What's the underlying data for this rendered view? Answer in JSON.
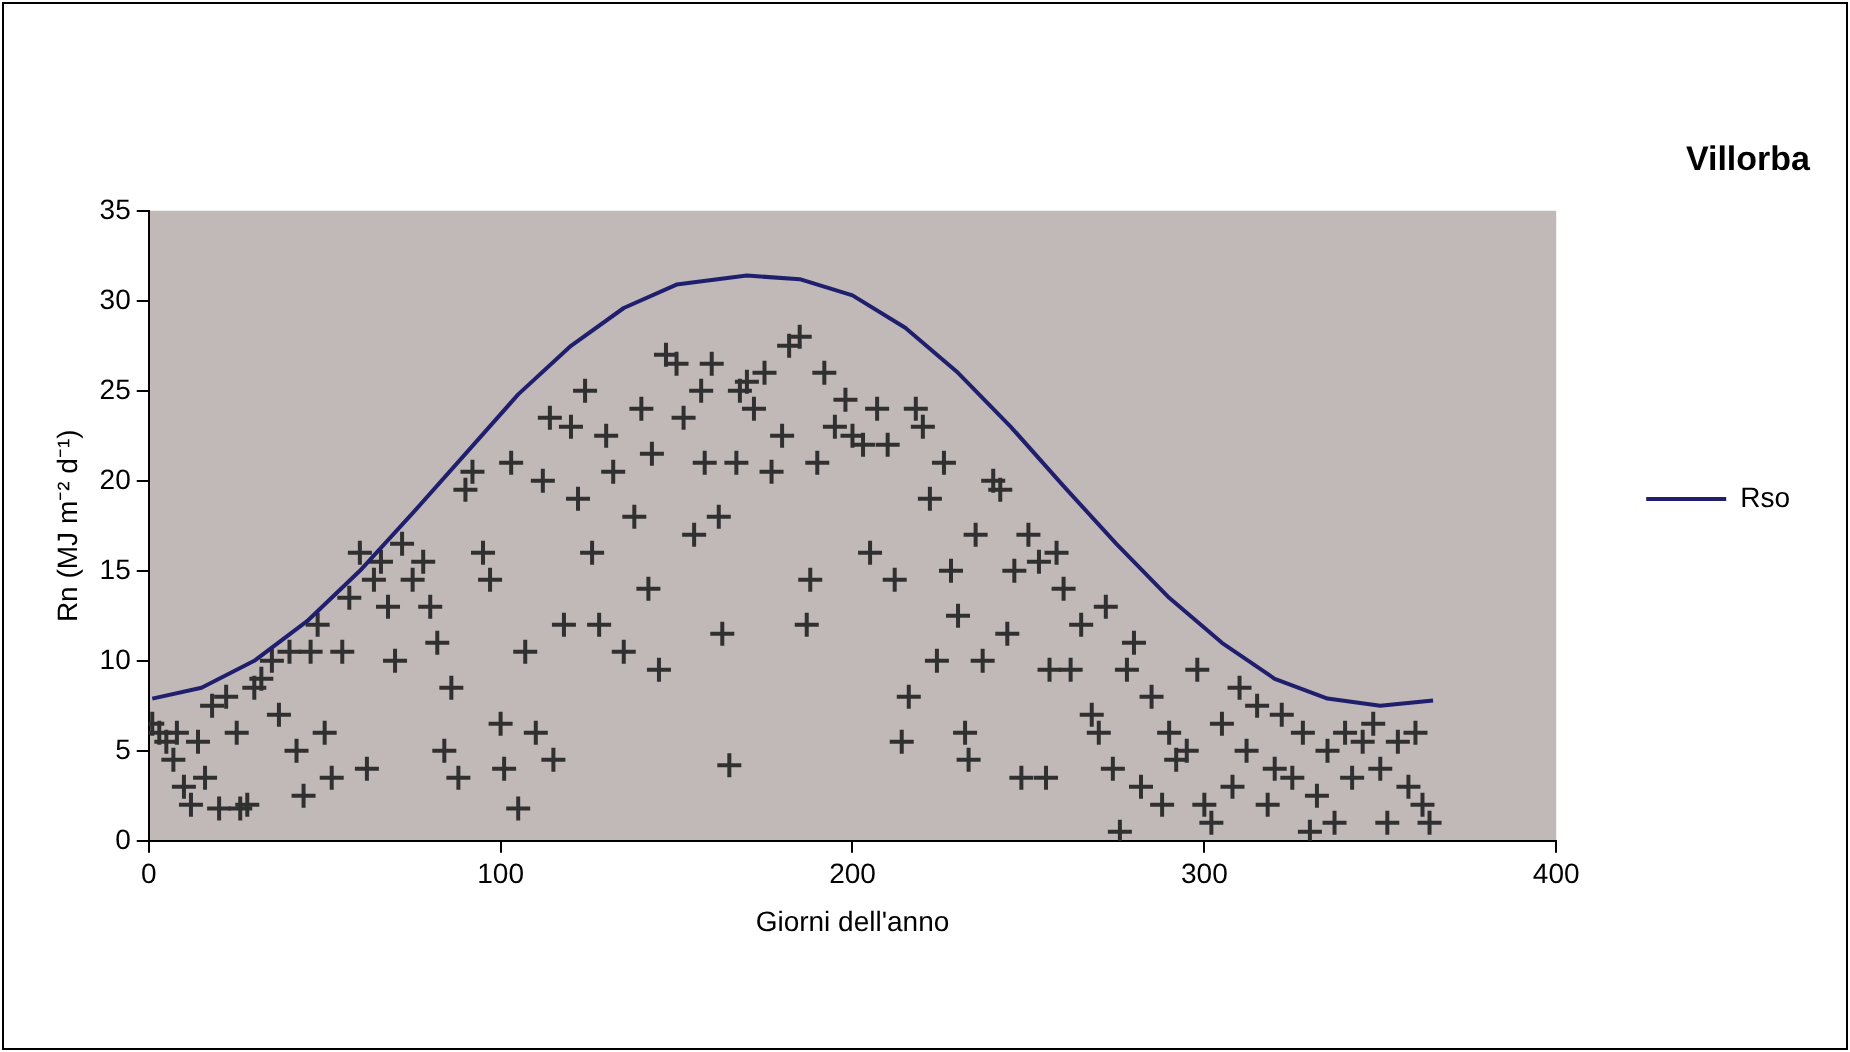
{
  "chart_data": {
    "type": "scatter",
    "title": "Villorba",
    "xlabel": "Giorni dell'anno",
    "ylabel": "Rn (MJ m⁻² d⁻¹)",
    "xlim": [
      0,
      400
    ],
    "xticks": [
      0,
      100,
      200,
      300,
      400
    ],
    "ylim": [
      0,
      35
    ],
    "yticks": [
      0,
      5,
      10,
      15,
      20,
      25,
      30,
      35
    ],
    "grid": false,
    "legend": "right",
    "marker": "cross",
    "series": [
      {
        "color": "#303030",
        "x": [
          1,
          3,
          5,
          7,
          8,
          10,
          12,
          14,
          16,
          18,
          20,
          22,
          25,
          26,
          28,
          30,
          32,
          35,
          37,
          40,
          42,
          44,
          46,
          48,
          50,
          52,
          55,
          57,
          60,
          62,
          64,
          66,
          68,
          70,
          72,
          75,
          78,
          80,
          82,
          84,
          86,
          88,
          90,
          92,
          95,
          97,
          100,
          101,
          103,
          105,
          107,
          110,
          112,
          114,
          115,
          118,
          120,
          122,
          124,
          126,
          128,
          130,
          132,
          135,
          138,
          140,
          142,
          143,
          145,
          147,
          150,
          152,
          155,
          157,
          158,
          160,
          162,
          163,
          165,
          167,
          168,
          170,
          172,
          175,
          177,
          180,
          182,
          185,
          187,
          188,
          190,
          192,
          195,
          198,
          200,
          203,
          205,
          207,
          210,
          212,
          214,
          216,
          218,
          220,
          222,
          224,
          226,
          228,
          230,
          232,
          233,
          235,
          237,
          240,
          242,
          244,
          246,
          248,
          250,
          253,
          255,
          256,
          258,
          260,
          262,
          265,
          268,
          270,
          272,
          274,
          276,
          278,
          280,
          282,
          285,
          288,
          290,
          292,
          295,
          298,
          300,
          302,
          305,
          308,
          310,
          312,
          315,
          318,
          320,
          322,
          325,
          328,
          330,
          332,
          335,
          337,
          340,
          342,
          345,
          348,
          350,
          352,
          355,
          358,
          360,
          362,
          364
        ],
        "values": [
          6.5,
          6,
          5.5,
          4.5,
          6,
          3,
          2,
          5.5,
          3.5,
          7.5,
          1.8,
          8,
          6,
          1.8,
          2,
          8.5,
          9,
          10,
          7,
          10.5,
          5,
          2.5,
          10.5,
          12,
          6,
          3.5,
          10.5,
          13.5,
          16,
          4,
          14.5,
          15.5,
          13,
          10,
          16.5,
          14.5,
          15.5,
          13,
          11,
          5,
          8.5,
          3.5,
          19.5,
          20.5,
          16,
          14.5,
          6.5,
          4,
          21,
          1.8,
          10.5,
          6,
          20,
          23.5,
          4.5,
          12,
          23,
          19,
          25,
          16,
          12,
          22.5,
          20.5,
          10.5,
          18,
          24,
          14,
          21.5,
          9.5,
          27,
          26.5,
          23.5,
          17,
          25,
          21,
          26.5,
          18,
          11.5,
          4.2,
          21,
          25,
          25.5,
          24,
          26,
          20.5,
          22.5,
          27.5,
          28,
          12,
          14.5,
          21,
          26,
          23,
          24.5,
          22.5,
          22,
          16,
          24,
          22,
          14.5,
          5.5,
          8,
          24,
          23,
          19,
          10,
          21,
          15,
          12.5,
          6,
          4.5,
          17,
          10,
          20,
          19.5,
          11.5,
          15,
          3.5,
          17,
          15.5,
          3.5,
          9.5,
          16,
          14,
          9.5,
          12,
          7,
          6,
          13,
          4,
          0.5,
          9.5,
          11,
          3,
          8,
          2,
          6,
          4.5,
          5,
          9.5,
          2,
          1,
          6.5,
          3,
          8.5,
          5,
          7.5,
          2,
          4,
          7,
          3.5,
          6,
          0.5,
          2.5,
          5,
          1,
          6,
          3.5,
          5.5,
          6.5,
          4,
          1,
          5.5,
          3,
          6,
          2,
          1
        ]
      },
      {
        "type": "line",
        "name": "Rso",
        "color": "#1f1f6e",
        "marker": "none",
        "line_style": "solid",
        "x": [
          1,
          15,
          30,
          45,
          60,
          75,
          90,
          105,
          120,
          135,
          150,
          170,
          185,
          200,
          215,
          230,
          245,
          260,
          275,
          290,
          305,
          320,
          335,
          350,
          365
        ],
        "values": [
          7.9,
          8.5,
          10,
          12.2,
          15,
          18.2,
          21.5,
          24.8,
          27.5,
          29.6,
          30.9,
          31.4,
          31.2,
          30.3,
          28.5,
          26,
          23,
          19.7,
          16.5,
          13.5,
          11,
          9,
          7.9,
          7.5,
          7.8
        ]
      }
    ]
  }
}
